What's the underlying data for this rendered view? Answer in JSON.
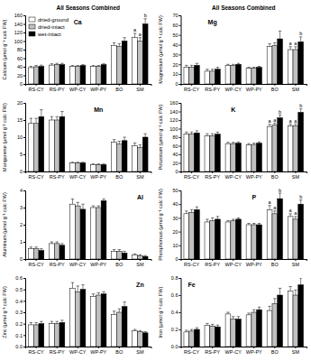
{
  "chart_data": [
    {
      "type": "bar",
      "title": "All Seasons Combined",
      "y_label": "Calcium (µmol g⁻¹ calc FW)",
      "categories": [
        "RS-CY",
        "RS-PY",
        "WP-CY",
        "WP-PY",
        "BO",
        "SM"
      ],
      "ylim": [
        0,
        160
      ],
      "yticks": [
        0,
        20,
        40,
        60,
        80,
        100,
        120,
        140,
        160
      ],
      "legend": "top-left",
      "series": [
        {
          "name": "dried-ground",
          "color": "#ffffff",
          "values": [
            38,
            44,
            41,
            41,
            90,
            108
          ],
          "errors": [
            3,
            3,
            2,
            2,
            6,
            10
          ]
        },
        {
          "name": "dried-intact",
          "color": "#c0c0c0",
          "values": [
            40,
            45,
            41,
            41,
            88,
            100
          ],
          "errors": [
            3,
            3,
            2,
            2,
            6,
            8
          ]
        },
        {
          "name": "wet-intact",
          "color": "#000000",
          "values": [
            41,
            45,
            43,
            45,
            100,
            140
          ],
          "errors": [
            3,
            3,
            2,
            2,
            8,
            12
          ]
        }
      ],
      "annotations": [
        {
          "text": "Ca"
        },
        {
          "text": "a",
          "category": "SM",
          "series": 0
        },
        {
          "text": "a",
          "category": "SM",
          "series": 1
        },
        {
          "text": "b",
          "category": "SM",
          "series": 2
        }
      ]
    },
    {
      "type": "bar",
      "title": "All Seasons Combined",
      "y_label": "Magnesium (µmol g⁻¹ calc FW)",
      "categories": [
        "RS-CY",
        "RS-PY",
        "WP-CY",
        "WP-PY",
        "BO",
        "SM"
      ],
      "ylim": [
        0,
        70
      ],
      "yticks": [
        0,
        10,
        20,
        30,
        40,
        50,
        60,
        70
      ],
      "series": [
        {
          "color": "#ffffff",
          "values": [
            17,
            13,
            19,
            16,
            38,
            35
          ],
          "errors": [
            2,
            2,
            1,
            1,
            3,
            3
          ]
        },
        {
          "color": "#c0c0c0",
          "values": [
            17,
            13,
            19,
            16,
            39,
            35
          ],
          "errors": [
            2,
            2,
            1,
            1,
            3,
            3
          ]
        },
        {
          "color": "#000000",
          "values": [
            19,
            15,
            20,
            17,
            46,
            43
          ],
          "errors": [
            2,
            2,
            1,
            1,
            8,
            5
          ]
        }
      ],
      "annotations": [
        {
          "text": "Mg"
        },
        {
          "text": "a",
          "category": "SM",
          "series": 0
        },
        {
          "text": "a",
          "category": "SM",
          "series": 1
        },
        {
          "text": "b",
          "category": "SM",
          "series": 2
        }
      ]
    },
    {
      "type": "bar",
      "y_label": "Manganese (µmol g⁻¹ calc FW)",
      "categories": [
        "RS-CY",
        "RS-PY",
        "WP-CY",
        "WP-PY",
        "BO",
        "SM"
      ],
      "ylim": [
        0,
        20
      ],
      "yticks": [
        0,
        5,
        10,
        15,
        20
      ],
      "series": [
        {
          "color": "#ffffff",
          "values": [
            14,
            15,
            2.5,
            2,
            8.5,
            7.5
          ],
          "errors": [
            1.5,
            1,
            0.2,
            0.2,
            0.8,
            0.8
          ]
        },
        {
          "color": "#c0c0c0",
          "values": [
            14,
            15,
            2.5,
            2,
            8,
            7
          ],
          "errors": [
            1.5,
            1,
            0.2,
            0.2,
            0.8,
            0.8
          ]
        },
        {
          "color": "#000000",
          "values": [
            16,
            16,
            2.5,
            2,
            9,
            10
          ],
          "errors": [
            2,
            1.5,
            0.2,
            0.2,
            1,
            1
          ]
        }
      ],
      "annotations": [
        {
          "text": "Mn"
        }
      ]
    },
    {
      "type": "bar",
      "y_label": "Potassium (µmol g⁻¹ calc FW)",
      "categories": [
        "RS-CY",
        "RS-PY",
        "WP-CY",
        "WP-PY",
        "BO",
        "SM"
      ],
      "ylim": [
        0,
        160
      ],
      "yticks": [
        0,
        20,
        40,
        60,
        80,
        100,
        120,
        140,
        160
      ],
      "series": [
        {
          "color": "#ffffff",
          "values": [
            87,
            83,
            65,
            62,
            105,
            106
          ],
          "errors": [
            5,
            5,
            3,
            3,
            5,
            5
          ]
        },
        {
          "color": "#c0c0c0",
          "values": [
            87,
            83,
            65,
            63,
            108,
            106
          ],
          "errors": [
            5,
            5,
            3,
            3,
            5,
            5
          ]
        },
        {
          "color": "#000000",
          "values": [
            90,
            87,
            66,
            66,
            125,
            138
          ],
          "errors": [
            5,
            5,
            3,
            3,
            7,
            8
          ]
        }
      ],
      "annotations": [
        {
          "text": "K"
        },
        {
          "text": "a",
          "category": "BO",
          "series": 0
        },
        {
          "text": "a",
          "category": "BO",
          "series": 1
        },
        {
          "text": "b",
          "category": "BO",
          "series": 2
        },
        {
          "text": "a",
          "category": "SM",
          "series": 0
        },
        {
          "text": "a",
          "category": "SM",
          "series": 1
        },
        {
          "text": "b",
          "category": "SM",
          "series": 2
        }
      ]
    },
    {
      "type": "bar",
      "y_label": "Aluminum (µmol g⁻¹ calc FW)",
      "categories": [
        "RS-CY",
        "RS-PY",
        "WP-CY",
        "WP-PY",
        "BO",
        "SM"
      ],
      "ylim": [
        0,
        4
      ],
      "yticks": [
        0,
        1,
        2,
        3,
        4
      ],
      "series": [
        {
          "color": "#ffffff",
          "values": [
            0.6,
            0.9,
            3.2,
            3.0,
            0.45,
            0.25
          ],
          "errors": [
            0.1,
            0.1,
            0.3,
            0.1,
            0.1,
            0.05
          ]
        },
        {
          "color": "#c0c0c0",
          "values": [
            0.6,
            0.9,
            3.1,
            3.0,
            0.45,
            0.2
          ],
          "errors": [
            0.1,
            0.1,
            0.2,
            0.1,
            0.1,
            0.05
          ]
        },
        {
          "color": "#000000",
          "values": [
            0.5,
            0.8,
            2.9,
            3.4,
            0.35,
            0.15
          ],
          "errors": [
            0.1,
            0.1,
            0.3,
            0.1,
            0.1,
            0.05
          ]
        }
      ],
      "annotations": [
        {
          "text": "Al"
        }
      ]
    },
    {
      "type": "bar",
      "y_label": "Phosphorous (µmol g⁻¹ calc FW)",
      "categories": [
        "RS-CY",
        "RS-PY",
        "WP-CY",
        "WP-PY",
        "BO",
        "SM"
      ],
      "ylim": [
        0,
        50
      ],
      "yticks": [
        0,
        10,
        20,
        30,
        40,
        50
      ],
      "series": [
        {
          "color": "#ffffff",
          "values": [
            33,
            27,
            27,
            25,
            36,
            31
          ],
          "errors": [
            2,
            2,
            1,
            1,
            3,
            2
          ]
        },
        {
          "color": "#c0c0c0",
          "values": [
            34,
            28,
            28,
            25,
            33,
            29
          ],
          "errors": [
            2,
            2,
            1,
            1,
            2,
            2
          ]
        },
        {
          "color": "#000000",
          "values": [
            36,
            29,
            29,
            25,
            44,
            40
          ],
          "errors": [
            2,
            2,
            1,
            1,
            4,
            3
          ]
        }
      ],
      "annotations": [
        {
          "text": "P"
        },
        {
          "text": "a",
          "category": "BO",
          "series": 0
        },
        {
          "text": "a",
          "category": "BO",
          "series": 1
        },
        {
          "text": "b",
          "category": "BO",
          "series": 2
        },
        {
          "text": "a",
          "category": "SM",
          "series": 0
        },
        {
          "text": "a",
          "category": "SM",
          "series": 1
        },
        {
          "text": "b",
          "category": "SM",
          "series": 2
        }
      ]
    },
    {
      "type": "bar",
      "y_label": "Zinc (µmol g⁻¹ calc FW)",
      "categories": [
        "RS-CY",
        "RS-PY",
        "WP-CY",
        "WP-PY",
        "BO",
        "SM"
      ],
      "ylim": [
        0,
        0.6
      ],
      "yticks": [
        {
          "value": 0,
          "label": "0.0"
        },
        0.1,
        0.2,
        0.3,
        0.4,
        0.5,
        0.6
      ],
      "series": [
        {
          "color": "#ffffff",
          "values": [
            0.19,
            0.2,
            0.51,
            0.44,
            0.28,
            0.14
          ],
          "errors": [
            0.02,
            0.02,
            0.05,
            0.02,
            0.03,
            0.01
          ]
        },
        {
          "color": "#c0c0c0",
          "values": [
            0.19,
            0.2,
            0.48,
            0.45,
            0.3,
            0.13
          ],
          "errors": [
            0.02,
            0.02,
            0.05,
            0.02,
            0.03,
            0.01
          ]
        },
        {
          "color": "#000000",
          "values": [
            0.2,
            0.21,
            0.5,
            0.46,
            0.35,
            0.12
          ],
          "errors": [
            0.02,
            0.02,
            0.04,
            0.02,
            0.04,
            0.01
          ]
        }
      ],
      "annotations": [
        {
          "text": "Zn"
        }
      ]
    },
    {
      "type": "bar",
      "y_label": "Iron (µmol g⁻¹ calc FW)",
      "categories": [
        "RS-CY",
        "RS-PY",
        "WP-CY",
        "WP-PY",
        "BO",
        "SM"
      ],
      "ylim": [
        0,
        0.8
      ],
      "yticks": [
        {
          "value": 0,
          "label": "0.0"
        },
        0.2,
        0.4,
        0.6,
        0.8
      ],
      "series": [
        {
          "color": "#ffffff",
          "values": [
            0.17,
            0.25,
            0.38,
            0.37,
            0.42,
            0.65
          ],
          "errors": [
            0.02,
            0.02,
            0.02,
            0.02,
            0.05,
            0.05
          ]
        },
        {
          "color": "#c0c0c0",
          "values": [
            0.18,
            0.24,
            0.32,
            0.4,
            0.5,
            0.6
          ],
          "errors": [
            0.02,
            0.02,
            0.03,
            0.03,
            0.06,
            0.06
          ]
        },
        {
          "color": "#000000",
          "values": [
            0.2,
            0.23,
            0.32,
            0.43,
            0.6,
            0.72
          ],
          "errors": [
            0.02,
            0.02,
            0.03,
            0.03,
            0.08,
            0.08
          ]
        }
      ],
      "annotations": [
        {
          "text": "Fe"
        }
      ]
    }
  ]
}
